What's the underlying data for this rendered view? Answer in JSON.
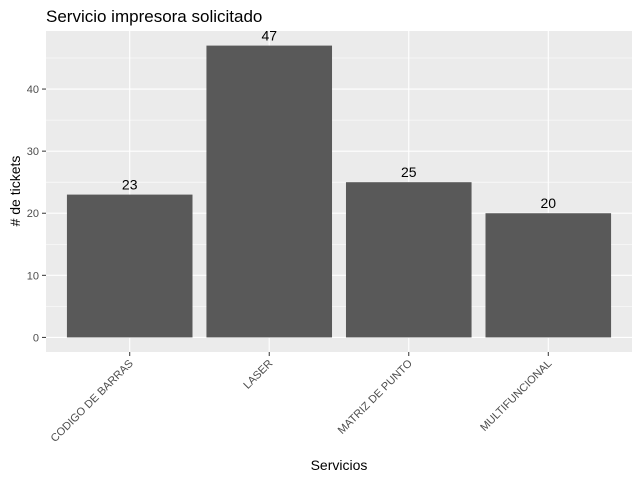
{
  "chart_data": {
    "type": "bar",
    "title": "Servicio impresora solicitado",
    "xlabel": "Servicios",
    "ylabel": "# de tickets",
    "categories": [
      "CODIGO DE BARRAS",
      "LASER",
      "MATRIZ DE PUNTO",
      "MULTIFUNCIONAL"
    ],
    "values": [
      23,
      47,
      25,
      20
    ],
    "data_labels": [
      "23",
      "47",
      "25",
      "20"
    ],
    "y_ticks": [
      0,
      10,
      20,
      30,
      40
    ],
    "y_tick_labels": [
      "0",
      "10",
      "20",
      "30",
      "40"
    ],
    "ylim": [
      -2.35,
      49.35
    ],
    "grid": true,
    "legend": "none",
    "colors": {
      "bar": "#595959",
      "panel": "#ebebeb",
      "grid": "#ffffff"
    }
  }
}
